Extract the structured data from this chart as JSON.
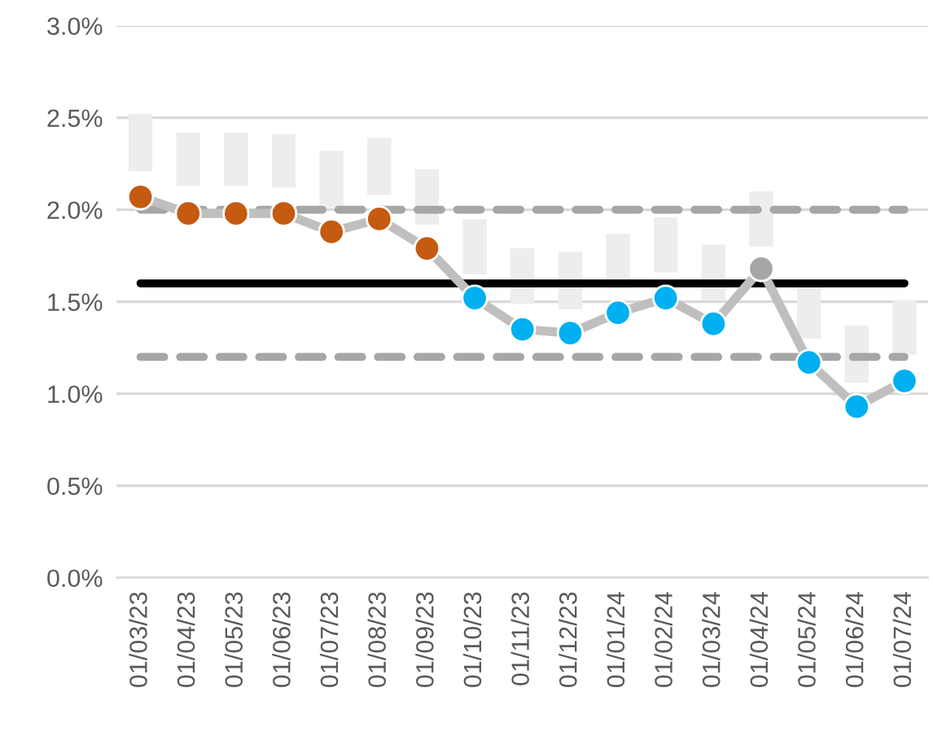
{
  "chart_data": {
    "type": "bar",
    "categories": [
      "01/03/23",
      "01/04/23",
      "01/05/23",
      "01/06/23",
      "01/07/23",
      "01/08/23",
      "01/09/23",
      "01/10/23",
      "01/11/23",
      "01/12/23",
      "01/01/24",
      "01/02/24",
      "01/03/24",
      "01/04/24",
      "01/05/24",
      "01/06/24",
      "01/07/24"
    ],
    "series": [
      {
        "color": "#ededed",
        "base": [
          2.21,
          2.13,
          2.13,
          2.12,
          2.01,
          2.08,
          1.92,
          1.65,
          1.49,
          1.46,
          1.57,
          1.66,
          1.51,
          1.8,
          1.3,
          1.06,
          1.21
        ],
        "values": [
          0.31,
          0.29,
          0.29,
          0.29,
          0.31,
          0.31,
          0.3,
          0.3,
          0.3,
          0.31,
          0.3,
          0.3,
          0.3,
          0.3,
          0.3,
          0.31,
          0.3
        ]
      },
      {
        "type": "line",
        "color": "#bfbfbf",
        "marker": "circle",
        "colors": [
          "#c55a11",
          "#c55a11",
          "#c55a11",
          "#c55a11",
          "#c55a11",
          "#c55a11",
          "#c55a11",
          "#00b0f0",
          "#00b0f0",
          "#00b0f0",
          "#00b0f0",
          "#00b0f0",
          "#00b0f0",
          "#a6a6a6",
          "#00b0f0",
          "#00b0f0",
          "#00b0f0"
        ],
        "values": [
          2.07,
          1.98,
          1.98,
          1.98,
          1.88,
          1.95,
          1.79,
          1.52,
          1.35,
          1.33,
          1.44,
          1.52,
          1.38,
          1.68,
          1.17,
          0.93,
          1.07
        ]
      }
    ],
    "ylim": [
      0,
      3.0
    ],
    "yticks": [
      {
        "value": 0,
        "label": "0.0%"
      },
      {
        "value": 0.5,
        "label": "0.5%"
      },
      {
        "value": 1.0,
        "label": "1.0%"
      },
      {
        "value": 1.5,
        "label": "1.5%"
      },
      {
        "value": 2.0,
        "label": "2.0%"
      },
      {
        "value": 2.5,
        "label": "2.5%"
      },
      {
        "value": 3.0,
        "label": "3.0%"
      }
    ],
    "grid": "y",
    "legend": false,
    "ref_lines": [
      {
        "axis": "y",
        "value": 2.0,
        "color": "#a6a6a6",
        "line_style": "dashed"
      },
      {
        "axis": "y",
        "value": 1.6,
        "color": "#000000",
        "line_style": "solid"
      },
      {
        "axis": "y",
        "value": 1.2,
        "color": "#a6a6a6",
        "line_style": "dashed"
      }
    ]
  }
}
